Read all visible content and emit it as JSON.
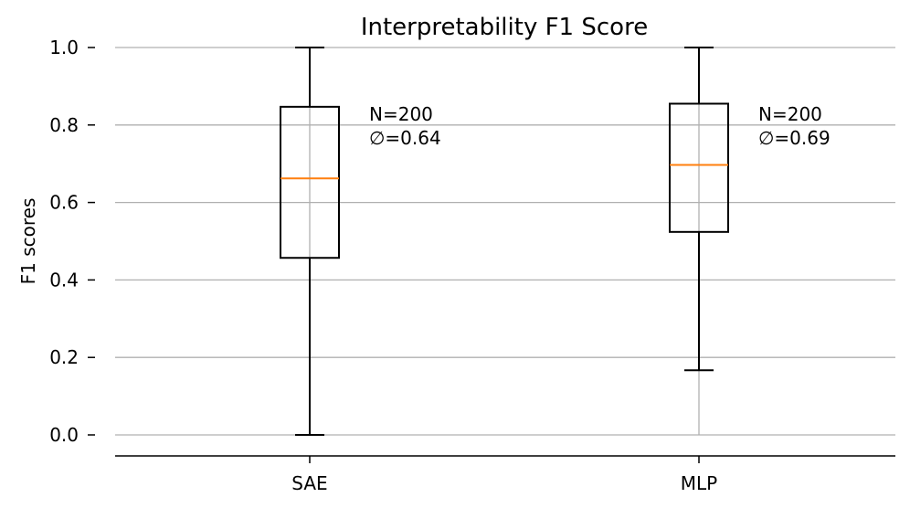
{
  "chart_data": {
    "type": "box",
    "title": "Interpretability F1 Score",
    "xlabel": "",
    "ylabel": "F1 scores",
    "ylim": [
      0.0,
      1.0
    ],
    "yticks": [
      0.0,
      0.2,
      0.4,
      0.6,
      0.8,
      1.0
    ],
    "ytick_labels": [
      "0.0",
      "0.2",
      "0.4",
      "0.6",
      "0.8",
      "1.0"
    ],
    "grid": "horizontal",
    "categories": [
      "SAE",
      "MLP"
    ],
    "boxes": [
      {
        "category": "SAE",
        "whisker_low": 0.0,
        "q1": 0.457,
        "median": 0.662,
        "q3": 0.847,
        "whisker_high": 1.0,
        "annotation_n": "N=200",
        "annotation_mean": "∅=0.64"
      },
      {
        "category": "MLP",
        "whisker_low": 0.167,
        "q1": 0.524,
        "median": 0.697,
        "q3": 0.855,
        "whisker_high": 1.0,
        "annotation_n": "N=200",
        "annotation_mean": "∅=0.69"
      }
    ],
    "colors": {
      "box": "#000000",
      "median": "#ff7f0e",
      "grid": "#b0b0b0"
    }
  }
}
